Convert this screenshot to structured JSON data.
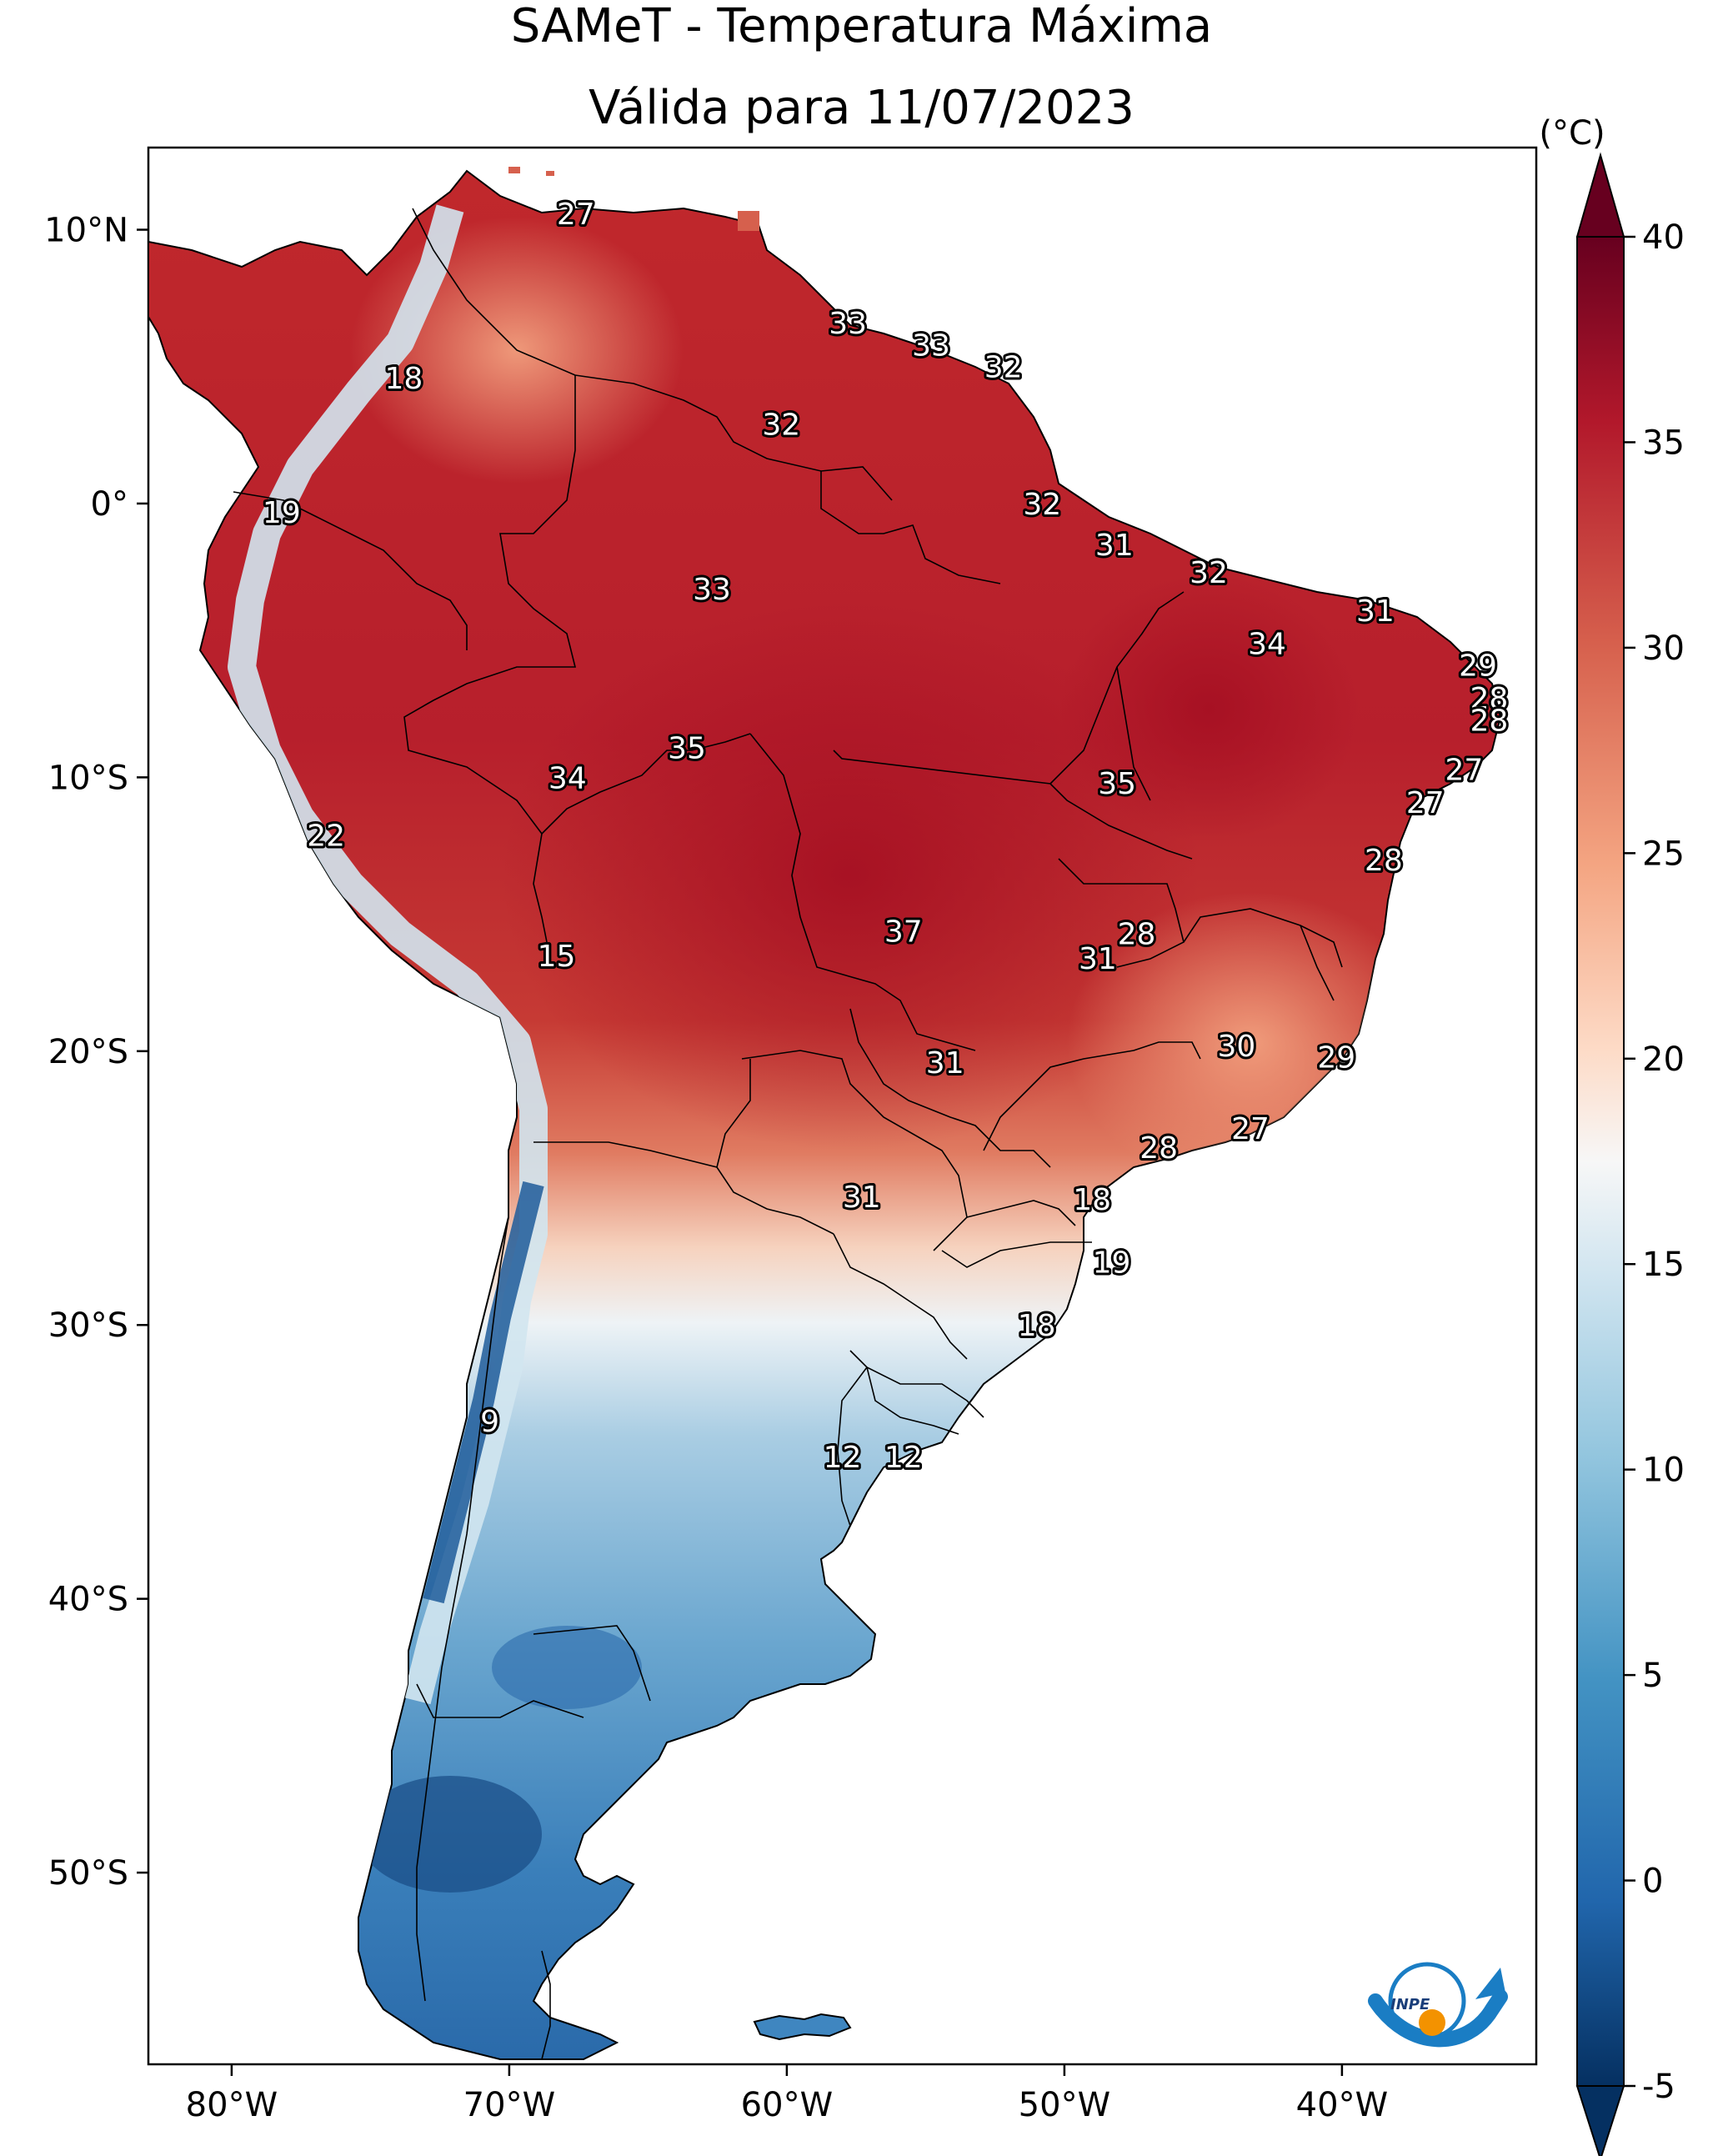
{
  "title": {
    "line1": "SAMeT - Temperatura Máxima",
    "line2": "Válida para 11/07/2023"
  },
  "map": {
    "lon_range": [
      -83,
      -33
    ],
    "lat_range": [
      -57,
      13
    ],
    "lon_ticks": [
      {
        "lon": -80,
        "label": "80°W"
      },
      {
        "lon": -70,
        "label": "70°W"
      },
      {
        "lon": -60,
        "label": "60°W"
      },
      {
        "lon": -50,
        "label": "50°W"
      },
      {
        "lon": -40,
        "label": "40°W"
      }
    ],
    "lat_ticks": [
      {
        "lat": 10,
        "label": "10°N"
      },
      {
        "lat": 0,
        "label": "0°"
      },
      {
        "lat": -10,
        "label": "10°S"
      },
      {
        "lat": -20,
        "label": "20°S"
      },
      {
        "lat": -30,
        "label": "30°S"
      },
      {
        "lat": -40,
        "label": "40°S"
      },
      {
        "lat": -50,
        "label": "50°S"
      }
    ],
    "logo_text": "INPE"
  },
  "colorbar": {
    "unit": "(°C)",
    "min": -5,
    "max": 40,
    "colormap": "RdBu_r",
    "extend": "both",
    "ticks": [
      {
        "value": 40,
        "label": "40"
      },
      {
        "value": 35,
        "label": "35"
      },
      {
        "value": 30,
        "label": "30"
      },
      {
        "value": 25,
        "label": "25"
      },
      {
        "value": 20,
        "label": "20"
      },
      {
        "value": 15,
        "label": "15"
      },
      {
        "value": 10,
        "label": "10"
      },
      {
        "value": 5,
        "label": "5"
      },
      {
        "value": 0,
        "label": "0"
      },
      {
        "value": -5,
        "label": "-5"
      }
    ]
  },
  "point_labels": [
    {
      "text": "27",
      "lon": -67.6,
      "lat": 10.6
    },
    {
      "text": "18",
      "lon": -73.8,
      "lat": 4.6
    },
    {
      "text": "33",
      "lon": -57.8,
      "lat": 6.6
    },
    {
      "text": "33",
      "lon": -54.8,
      "lat": 5.8
    },
    {
      "text": "32",
      "lon": -52.2,
      "lat": 5.0
    },
    {
      "text": "32",
      "lon": -60.2,
      "lat": 2.9
    },
    {
      "text": "19",
      "lon": -78.2,
      "lat": -0.3
    },
    {
      "text": "32",
      "lon": -50.8,
      "lat": 0.0
    },
    {
      "text": "31",
      "lon": -48.2,
      "lat": -1.5
    },
    {
      "text": "32",
      "lon": -44.8,
      "lat": -2.5
    },
    {
      "text": "33",
      "lon": -62.7,
      "lat": -3.1
    },
    {
      "text": "31",
      "lon": -38.8,
      "lat": -3.9
    },
    {
      "text": "34",
      "lon": -42.7,
      "lat": -5.1
    },
    {
      "text": "29",
      "lon": -35.1,
      "lat": -5.9
    },
    {
      "text": "28",
      "lon": -34.7,
      "lat": -7.1
    },
    {
      "text": "28",
      "lon": -34.7,
      "lat": -7.9
    },
    {
      "text": "35",
      "lon": -63.6,
      "lat": -8.9
    },
    {
      "text": "27",
      "lon": -35.6,
      "lat": -9.7
    },
    {
      "text": "34",
      "lon": -67.9,
      "lat": -10.0
    },
    {
      "text": "35",
      "lon": -48.1,
      "lat": -10.2
    },
    {
      "text": "27",
      "lon": -37.0,
      "lat": -10.9
    },
    {
      "text": "22",
      "lon": -76.6,
      "lat": -12.1
    },
    {
      "text": "28",
      "lon": -38.5,
      "lat": -13.0
    },
    {
      "text": "37",
      "lon": -55.8,
      "lat": -15.6
    },
    {
      "text": "28",
      "lon": -47.4,
      "lat": -15.7
    },
    {
      "text": "15",
      "lon": -68.3,
      "lat": -16.5
    },
    {
      "text": "31",
      "lon": -48.8,
      "lat": -16.6
    },
    {
      "text": "30",
      "lon": -43.8,
      "lat": -19.8
    },
    {
      "text": "31",
      "lon": -54.3,
      "lat": -20.4
    },
    {
      "text": "29",
      "lon": -40.2,
      "lat": -20.2
    },
    {
      "text": "27",
      "lon": -43.3,
      "lat": -22.8
    },
    {
      "text": "28",
      "lon": -46.6,
      "lat": -23.5
    },
    {
      "text": "31",
      "lon": -57.3,
      "lat": -25.3
    },
    {
      "text": "18",
      "lon": -49.0,
      "lat": -25.4
    },
    {
      "text": "19",
      "lon": -48.3,
      "lat": -27.7
    },
    {
      "text": "18",
      "lon": -51.0,
      "lat": -30.0
    },
    {
      "text": "9",
      "lon": -70.7,
      "lat": -33.5
    },
    {
      "text": "12",
      "lon": -58.0,
      "lat": -34.8
    },
    {
      "text": "12",
      "lon": -55.8,
      "lat": -34.8
    }
  ]
}
